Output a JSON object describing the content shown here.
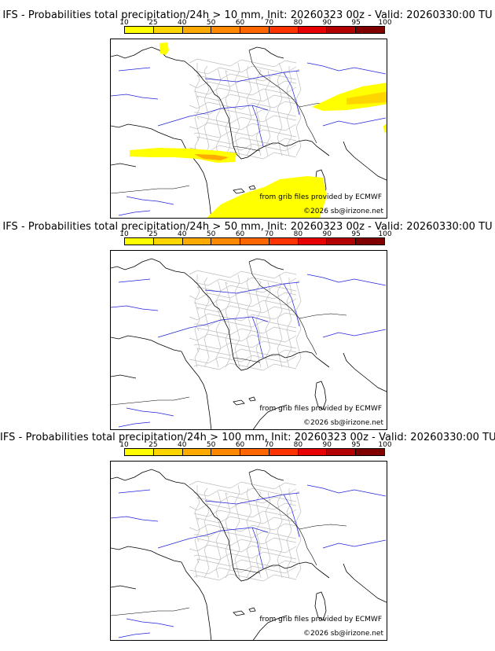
{
  "colorbar": {
    "ticks": [
      "10",
      "25",
      "40",
      "50",
      "60",
      "70",
      "80",
      "90",
      "95",
      "100"
    ],
    "colors": [
      "#ffff00",
      "#ffd500",
      "#ffaa00",
      "#ff8800",
      "#ff6600",
      "#ff3300",
      "#e60000",
      "#b30000",
      "#800000"
    ]
  },
  "credits": {
    "source": "from grib files provided by ECMWF",
    "copyright": "©2026 sb@irizone.net"
  },
  "panels": [
    {
      "title": "IFS - Probabilities total precipitation/24h > 10 mm, Init: 20260323 00z - Valid: 20260330:00 TU"
    },
    {
      "title": "IFS - Probabilities total precipitation/24h > 50 mm, Init: 20260323 00z - Valid: 20260330:00 TU"
    },
    {
      "title": "IFS - Probabilities total precipitation/24h > 100 mm, Init: 20260323 00z - Valid: 20260330:00 TU"
    }
  ]
}
